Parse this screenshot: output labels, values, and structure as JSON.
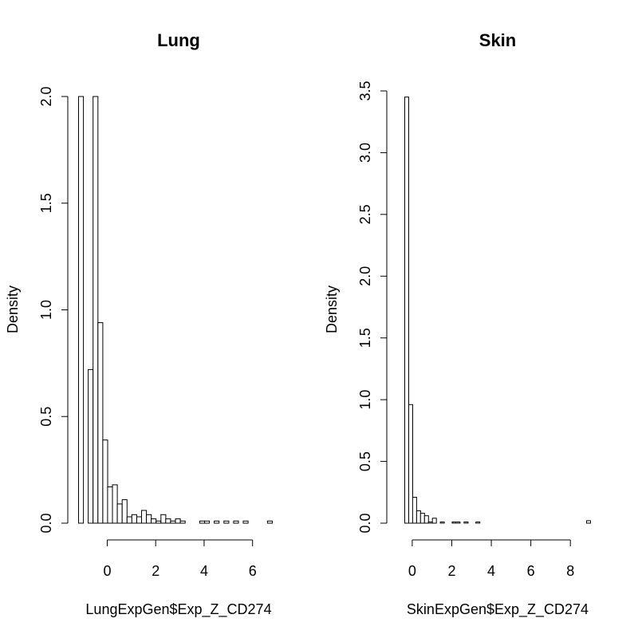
{
  "chart_data": [
    {
      "type": "bar",
      "title": "Lung",
      "xlabel": "LungExpGen$Exp_Z_CD274",
      "ylabel": "Density",
      "xlim": [
        -1.2,
        6.8
      ],
      "ylim": [
        0,
        2.0
      ],
      "x_ticks": [
        0,
        2,
        4,
        6
      ],
      "y_ticks": [
        "0.0",
        "0.5",
        "1.0",
        "1.5",
        "2.0"
      ],
      "bin_width": 0.2,
      "bins": [
        {
          "x0": -1.2,
          "x1": -1.0,
          "density": 2.0
        },
        {
          "x0": -0.8,
          "x1": -0.6,
          "density": 0.72
        },
        {
          "x0": -0.6,
          "x1": -0.4,
          "density": 2.0
        },
        {
          "x0": -0.4,
          "x1": -0.2,
          "density": 0.94
        },
        {
          "x0": -0.2,
          "x1": 0.0,
          "density": 0.39
        },
        {
          "x0": 0.0,
          "x1": 0.2,
          "density": 0.17
        },
        {
          "x0": 0.2,
          "x1": 0.4,
          "density": 0.18
        },
        {
          "x0": 0.4,
          "x1": 0.6,
          "density": 0.09
        },
        {
          "x0": 0.6,
          "x1": 0.8,
          "density": 0.11
        },
        {
          "x0": 0.8,
          "x1": 1.0,
          "density": 0.03
        },
        {
          "x0": 1.0,
          "x1": 1.2,
          "density": 0.04
        },
        {
          "x0": 1.2,
          "x1": 1.4,
          "density": 0.03
        },
        {
          "x0": 1.4,
          "x1": 1.6,
          "density": 0.06
        },
        {
          "x0": 1.6,
          "x1": 1.8,
          "density": 0.04
        },
        {
          "x0": 1.8,
          "x1": 2.0,
          "density": 0.02
        },
        {
          "x0": 2.0,
          "x1": 2.2,
          "density": 0.01
        },
        {
          "x0": 2.2,
          "x1": 2.4,
          "density": 0.04
        },
        {
          "x0": 2.4,
          "x1": 2.6,
          "density": 0.02
        },
        {
          "x0": 2.6,
          "x1": 2.8,
          "density": 0.01
        },
        {
          "x0": 2.8,
          "x1": 3.0,
          "density": 0.02
        },
        {
          "x0": 3.0,
          "x1": 3.2,
          "density": 0.01
        },
        {
          "x0": 3.8,
          "x1": 4.0,
          "density": 0.01
        },
        {
          "x0": 4.0,
          "x1": 4.2,
          "density": 0.01
        },
        {
          "x0": 4.4,
          "x1": 4.6,
          "density": 0.01
        },
        {
          "x0": 4.8,
          "x1": 5.0,
          "density": 0.01
        },
        {
          "x0": 5.2,
          "x1": 5.4,
          "density": 0.01
        },
        {
          "x0": 5.6,
          "x1": 5.8,
          "density": 0.01
        },
        {
          "x0": 6.6,
          "x1": 6.8,
          "density": 0.01
        }
      ]
    },
    {
      "type": "bar",
      "title": "Skin",
      "xlabel": "SkinExpGen$Exp_Z_CD274",
      "ylabel": "Density",
      "xlim": [
        -0.4,
        9.0
      ],
      "ylim": [
        0,
        3.5
      ],
      "x_ticks": [
        0,
        2,
        4,
        6,
        8
      ],
      "y_ticks": [
        "0.0",
        "0.5",
        "1.0",
        "1.5",
        "2.0",
        "2.5",
        "3.0",
        "3.5"
      ],
      "bin_width": 0.2,
      "bins": [
        {
          "x0": -0.4,
          "x1": -0.2,
          "density": 3.45
        },
        {
          "x0": -0.2,
          "x1": 0.0,
          "density": 0.96
        },
        {
          "x0": 0.0,
          "x1": 0.2,
          "density": 0.21
        },
        {
          "x0": 0.2,
          "x1": 0.4,
          "density": 0.1
        },
        {
          "x0": 0.4,
          "x1": 0.6,
          "density": 0.08
        },
        {
          "x0": 0.6,
          "x1": 0.8,
          "density": 0.06
        },
        {
          "x0": 0.8,
          "x1": 1.0,
          "density": 0.01
        },
        {
          "x0": 1.0,
          "x1": 1.2,
          "density": 0.04
        },
        {
          "x0": 1.4,
          "x1": 1.6,
          "density": 0.01
        },
        {
          "x0": 2.0,
          "x1": 2.2,
          "density": 0.01
        },
        {
          "x0": 2.2,
          "x1": 2.4,
          "density": 0.01
        },
        {
          "x0": 2.6,
          "x1": 2.8,
          "density": 0.01
        },
        {
          "x0": 3.2,
          "x1": 3.4,
          "density": 0.01
        },
        {
          "x0": 8.8,
          "x1": 9.0,
          "density": 0.02
        }
      ]
    }
  ]
}
